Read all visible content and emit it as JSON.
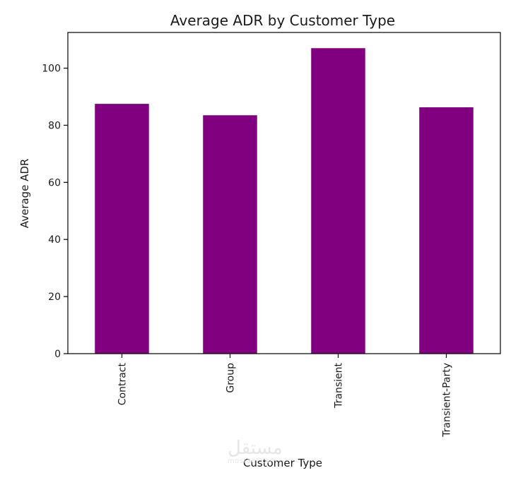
{
  "chart_data": {
    "type": "bar",
    "title": "Average ADR by Customer Type",
    "xlabel": "Customer Type",
    "ylabel": "Average ADR",
    "categories": [
      "Contract",
      "Group",
      "Transient",
      "Transient-Party"
    ],
    "values": [
      87.5,
      83.5,
      107.0,
      86.3
    ],
    "ylim": [
      0,
      112.5
    ],
    "yticks": [
      0,
      20,
      40,
      60,
      80,
      100
    ],
    "bar_color": "#800080",
    "grid": false,
    "legend": "none"
  },
  "watermark": {
    "text_ar": "مستقل",
    "text_lat": "mostaql.com"
  }
}
